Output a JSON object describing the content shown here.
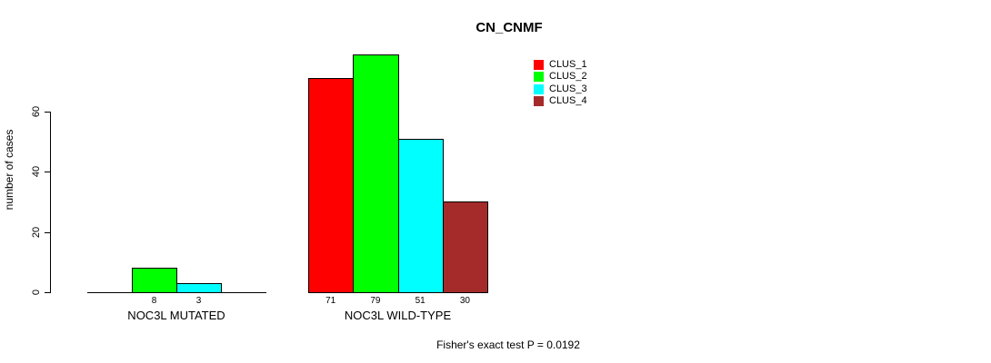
{
  "chart_data": {
    "type": "bar",
    "title": "CN_CNMF",
    "ylabel": "number of cases",
    "yticks": [
      0,
      20,
      40,
      60
    ],
    "ylim": [
      0,
      79
    ],
    "grid": false,
    "legend_position": "top-right",
    "categories": [
      "NOC3L MUTATED",
      "NOC3L WILD-TYPE"
    ],
    "series": [
      {
        "name": "CLUS_1",
        "color": "#FF0000",
        "values": [
          0,
          71
        ]
      },
      {
        "name": "CLUS_2",
        "color": "#00FF00",
        "values": [
          8,
          79
        ]
      },
      {
        "name": "CLUS_3",
        "color": "#00FFFF",
        "values": [
          3,
          51
        ]
      },
      {
        "name": "CLUS_4",
        "color": "#A52A2A",
        "values": [
          0,
          30
        ]
      }
    ],
    "bar_value_labels": "shown under each non-zero bar",
    "annotation": "Fisher's exact test P = 0.0192"
  }
}
